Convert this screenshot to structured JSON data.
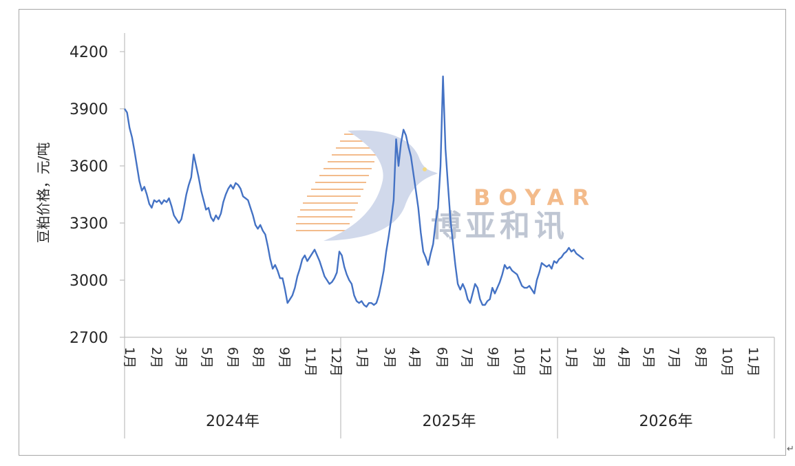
{
  "chart_data": {
    "type": "line",
    "title": "",
    "ylabel": "豆粕价格，元/吨",
    "ylim": [
      2700,
      4200
    ],
    "yticks": [
      2700,
      3000,
      3300,
      3600,
      3900,
      4200
    ],
    "x_month_labels": [
      "1月",
      "2月",
      "3月",
      "5月",
      "6月",
      "8月",
      "9月",
      "11月",
      "12月",
      "1月",
      "3月",
      "4月",
      "6月",
      "7月",
      "9月",
      "10月",
      "12月",
      "1月",
      "3月",
      "4月",
      "5月",
      "7月",
      "8月",
      "10月",
      "11月"
    ],
    "year_groups": [
      "2024年",
      "2025年",
      "2026年"
    ],
    "series": [
      {
        "name": "",
        "color": "#4472c4",
        "points": [
          [
            0,
            3900
          ],
          [
            1,
            3880
          ],
          [
            2,
            3800
          ],
          [
            3,
            3750
          ],
          [
            4,
            3680
          ],
          [
            5,
            3600
          ],
          [
            6,
            3520
          ],
          [
            7,
            3470
          ],
          [
            8,
            3490
          ],
          [
            9,
            3450
          ],
          [
            10,
            3400
          ],
          [
            11,
            3380
          ],
          [
            12,
            3420
          ],
          [
            13,
            3410
          ],
          [
            14,
            3420
          ],
          [
            15,
            3400
          ],
          [
            16,
            3420
          ],
          [
            17,
            3410
          ],
          [
            18,
            3430
          ],
          [
            19,
            3390
          ],
          [
            20,
            3340
          ],
          [
            21,
            3320
          ],
          [
            22,
            3300
          ],
          [
            23,
            3320
          ],
          [
            24,
            3380
          ],
          [
            25,
            3450
          ],
          [
            26,
            3500
          ],
          [
            27,
            3540
          ],
          [
            28,
            3660
          ],
          [
            29,
            3600
          ],
          [
            30,
            3540
          ],
          [
            31,
            3470
          ],
          [
            32,
            3420
          ],
          [
            33,
            3370
          ],
          [
            34,
            3380
          ],
          [
            35,
            3330
          ],
          [
            36,
            3310
          ],
          [
            37,
            3340
          ],
          [
            38,
            3320
          ],
          [
            39,
            3350
          ],
          [
            40,
            3410
          ],
          [
            41,
            3450
          ],
          [
            42,
            3480
          ],
          [
            43,
            3500
          ],
          [
            44,
            3480
          ],
          [
            45,
            3510
          ],
          [
            46,
            3500
          ],
          [
            47,
            3480
          ],
          [
            48,
            3440
          ],
          [
            49,
            3430
          ],
          [
            50,
            3420
          ],
          [
            51,
            3380
          ],
          [
            52,
            3340
          ],
          [
            53,
            3290
          ],
          [
            54,
            3270
          ],
          [
            55,
            3290
          ],
          [
            56,
            3260
          ],
          [
            57,
            3240
          ],
          [
            58,
            3180
          ],
          [
            59,
            3110
          ],
          [
            60,
            3060
          ],
          [
            61,
            3080
          ],
          [
            62,
            3050
          ],
          [
            63,
            3010
          ],
          [
            64,
            3010
          ],
          [
            65,
            2950
          ],
          [
            66,
            2880
          ],
          [
            67,
            2900
          ],
          [
            68,
            2920
          ],
          [
            69,
            2960
          ],
          [
            70,
            3020
          ],
          [
            71,
            3060
          ],
          [
            72,
            3110
          ],
          [
            73,
            3130
          ],
          [
            74,
            3100
          ],
          [
            75,
            3120
          ],
          [
            76,
            3140
          ],
          [
            77,
            3160
          ],
          [
            78,
            3130
          ],
          [
            79,
            3100
          ],
          [
            80,
            3060
          ],
          [
            81,
            3020
          ],
          [
            82,
            3000
          ],
          [
            83,
            2980
          ],
          [
            84,
            2990
          ],
          [
            85,
            3010
          ],
          [
            86,
            3040
          ],
          [
            87,
            3150
          ],
          [
            88,
            3130
          ],
          [
            89,
            3070
          ],
          [
            90,
            3030
          ],
          [
            91,
            3000
          ],
          [
            92,
            2980
          ],
          [
            93,
            2920
          ],
          [
            94,
            2890
          ],
          [
            95,
            2880
          ],
          [
            96,
            2890
          ],
          [
            97,
            2870
          ],
          [
            98,
            2860
          ],
          [
            99,
            2880
          ],
          [
            100,
            2880
          ],
          [
            101,
            2870
          ],
          [
            102,
            2880
          ],
          [
            103,
            2920
          ],
          [
            104,
            2980
          ],
          [
            105,
            3050
          ],
          [
            106,
            3150
          ],
          [
            107,
            3230
          ],
          [
            108,
            3320
          ],
          [
            109,
            3420
          ],
          [
            110,
            3740
          ],
          [
            111,
            3600
          ],
          [
            112,
            3720
          ],
          [
            113,
            3790
          ],
          [
            114,
            3760
          ],
          [
            115,
            3700
          ],
          [
            116,
            3650
          ],
          [
            117,
            3560
          ],
          [
            118,
            3470
          ],
          [
            119,
            3380
          ],
          [
            120,
            3250
          ],
          [
            121,
            3150
          ],
          [
            122,
            3120
          ],
          [
            123,
            3080
          ],
          [
            124,
            3140
          ],
          [
            125,
            3190
          ],
          [
            126,
            3300
          ],
          [
            127,
            3380
          ],
          [
            128,
            3600
          ],
          [
            129,
            4070
          ],
          [
            130,
            3690
          ],
          [
            131,
            3500
          ],
          [
            132,
            3320
          ],
          [
            133,
            3200
          ],
          [
            134,
            3080
          ],
          [
            135,
            2980
          ],
          [
            136,
            2950
          ],
          [
            137,
            2980
          ],
          [
            138,
            2950
          ],
          [
            139,
            2900
          ],
          [
            140,
            2880
          ],
          [
            141,
            2930
          ],
          [
            142,
            2980
          ],
          [
            143,
            2960
          ],
          [
            144,
            2900
          ],
          [
            145,
            2870
          ],
          [
            146,
            2870
          ],
          [
            147,
            2890
          ],
          [
            148,
            2900
          ],
          [
            149,
            2960
          ],
          [
            150,
            2930
          ],
          [
            151,
            2960
          ],
          [
            152,
            2990
          ],
          [
            153,
            3030
          ],
          [
            154,
            3080
          ],
          [
            155,
            3060
          ],
          [
            156,
            3070
          ],
          [
            157,
            3050
          ],
          [
            158,
            3040
          ],
          [
            159,
            3030
          ],
          [
            160,
            3000
          ],
          [
            161,
            2970
          ],
          [
            162,
            2960
          ],
          [
            163,
            2960
          ],
          [
            164,
            2970
          ],
          [
            165,
            2950
          ],
          [
            166,
            2930
          ],
          [
            167,
            3000
          ],
          [
            168,
            3040
          ],
          [
            169,
            3090
          ],
          [
            170,
            3080
          ],
          [
            171,
            3070
          ],
          [
            172,
            3080
          ],
          [
            173,
            3060
          ],
          [
            174,
            3100
          ],
          [
            175,
            3090
          ],
          [
            176,
            3110
          ],
          [
            177,
            3120
          ],
          [
            178,
            3140
          ],
          [
            179,
            3150
          ],
          [
            180,
            3170
          ],
          [
            181,
            3150
          ],
          [
            182,
            3160
          ],
          [
            183,
            3140
          ],
          [
            184,
            3130
          ],
          [
            185,
            3120
          ],
          [
            186,
            3110
          ]
        ]
      }
    ]
  },
  "watermark": {
    "latin": "BOYAR",
    "chinese": "博亚和讯",
    "colors": {
      "orange": "#f2b077",
      "grey": "#b4bdcc",
      "blue_mark": "#c9d3e8"
    }
  }
}
